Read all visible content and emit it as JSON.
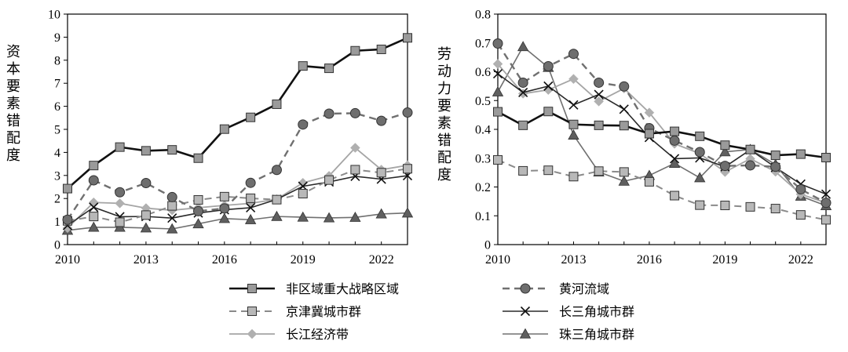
{
  "chart_data": [
    {
      "type": "line",
      "ylabel": "资本要素错配度",
      "ylim": [
        0,
        10
      ],
      "yticks": [
        "0",
        "1",
        "2",
        "3",
        "4",
        "5",
        "6",
        "7",
        "8",
        "9",
        "10"
      ],
      "xlim": [
        2010,
        2023
      ],
      "xticks": [
        "2010",
        "2013",
        "2016",
        "2019",
        "2022"
      ],
      "x": [
        2010,
        2011,
        2012,
        2013,
        2014,
        2015,
        2016,
        2017,
        2018,
        2019,
        2020,
        2021,
        2022,
        2023
      ],
      "series": [
        {
          "name": "非区域重大战略区域",
          "values": [
            2.43,
            3.43,
            4.23,
            4.07,
            4.11,
            3.75,
            5.01,
            5.52,
            6.09,
            7.75,
            7.65,
            8.41,
            8.47,
            8.97
          ]
        },
        {
          "name": "黄河流域",
          "values": [
            1.08,
            2.79,
            2.27,
            2.67,
            2.06,
            1.45,
            1.57,
            2.68,
            3.24,
            5.21,
            5.68,
            5.7,
            5.37,
            5.73
          ]
        },
        {
          "name": "京津冀城市群",
          "values": [
            1.03,
            1.22,
            0.97,
            1.28,
            1.68,
            1.94,
            2.08,
            2.01,
            1.95,
            2.21,
            2.8,
            3.25,
            3.12,
            3.29
          ]
        },
        {
          "name": "长三角城市群",
          "values": [
            0.83,
            1.62,
            1.21,
            1.22,
            1.15,
            1.37,
            1.51,
            1.6,
            1.96,
            2.53,
            2.72,
            2.96,
            2.84,
            2.99
          ]
        },
        {
          "name": "长江经济带",
          "values": [
            0.72,
            1.83,
            1.79,
            1.58,
            1.49,
            1.6,
            1.7,
            1.79,
            1.97,
            2.68,
            2.98,
            4.2,
            3.25,
            3.44
          ]
        },
        {
          "name": "珠三角城市群",
          "values": [
            0.62,
            0.75,
            0.75,
            0.72,
            0.68,
            0.9,
            1.13,
            1.08,
            1.22,
            1.19,
            1.16,
            1.18,
            1.33,
            1.37
          ]
        }
      ]
    },
    {
      "type": "line",
      "ylabel": "劳动力要素错配度",
      "ylim": [
        0,
        0.8
      ],
      "yticks": [
        "0",
        "0.1",
        "0.2",
        "0.3",
        "0.4",
        "0.5",
        "0.6",
        "0.7",
        "0.8"
      ],
      "xlim": [
        2010,
        2023
      ],
      "xticks": [
        "2010",
        "2013",
        "2016",
        "2019",
        "2022"
      ],
      "x": [
        2010,
        2011,
        2012,
        2013,
        2014,
        2015,
        2016,
        2017,
        2018,
        2019,
        2020,
        2021,
        2022,
        2023
      ],
      "series": [
        {
          "name": "非区域重大战略区域",
          "values": [
            0.461,
            0.414,
            0.462,
            0.417,
            0.414,
            0.413,
            0.385,
            0.393,
            0.376,
            0.345,
            0.33,
            0.31,
            0.314,
            0.302
          ]
        },
        {
          "name": "黄河流域",
          "values": [
            0.698,
            0.562,
            0.619,
            0.662,
            0.562,
            0.549,
            0.404,
            0.361,
            0.321,
            0.273,
            0.275,
            0.27,
            0.192,
            0.145
          ]
        },
        {
          "name": "京津冀城市群",
          "values": [
            0.294,
            0.256,
            0.258,
            0.236,
            0.255,
            0.252,
            0.218,
            0.17,
            0.137,
            0.136,
            0.131,
            0.125,
            0.103,
            0.086
          ]
        },
        {
          "name": "长三角城市群",
          "values": [
            0.593,
            0.528,
            0.55,
            0.485,
            0.521,
            0.47,
            0.372,
            0.298,
            0.301,
            0.27,
            0.329,
            0.268,
            0.21,
            0.175
          ]
        },
        {
          "name": "长江经济带",
          "values": [
            0.627,
            0.524,
            0.537,
            0.575,
            0.497,
            0.542,
            0.458,
            0.35,
            0.316,
            0.252,
            0.298,
            0.253,
            0.175,
            0.145
          ]
        },
        {
          "name": "珠三角城市群",
          "values": [
            0.53,
            0.687,
            0.615,
            0.38,
            0.252,
            0.22,
            0.24,
            0.282,
            0.232,
            0.322,
            0.33,
            0.278,
            0.168,
            0.135
          ]
        }
      ]
    }
  ],
  "legend": [
    {
      "label": "非区域重大战略区域",
      "marker": "square",
      "fill": "#9a9a9a",
      "color": "#111111",
      "dash": "solid",
      "width": 2.6
    },
    {
      "label": "黄河流域",
      "marker": "circle",
      "fill": "#6e6e6e",
      "color": "#707070",
      "dash": "dashed",
      "width": 2.4
    },
    {
      "label": "京津冀城市群",
      "marker": "square",
      "fill": "#b8b8b8",
      "color": "#8a8a8a",
      "dash": "dashed",
      "width": 2.0
    },
    {
      "label": "长三角城市群",
      "marker": "x",
      "fill": "none",
      "color": "#2a2a2a",
      "dash": "solid",
      "width": 1.6
    },
    {
      "label": "长江经济带",
      "marker": "diamond",
      "fill": "#b0b0b0",
      "color": "#a5a5a5",
      "dash": "solid",
      "width": 1.8
    },
    {
      "label": "珠三角城市群",
      "marker": "triangle",
      "fill": "#5f5f5f",
      "color": "#707070",
      "dash": "solid",
      "width": 1.6
    }
  ]
}
